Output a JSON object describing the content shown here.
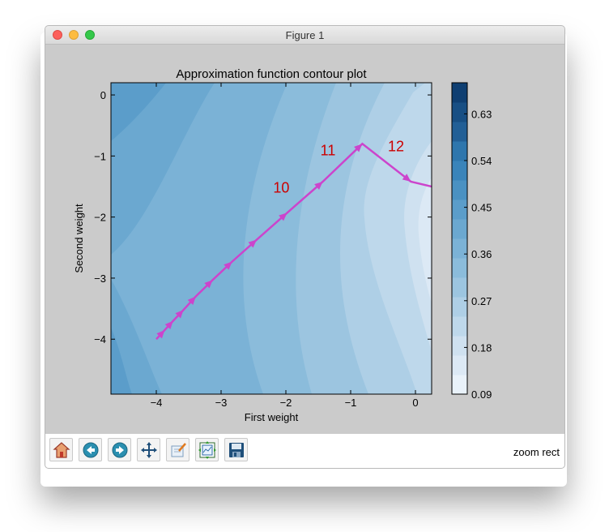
{
  "window": {
    "title": "Figure 1"
  },
  "toolbar": {
    "buttons": [
      {
        "name": "home-button",
        "icon": "home-icon"
      },
      {
        "name": "back-button",
        "icon": "back-arrow-icon"
      },
      {
        "name": "forward-button",
        "icon": "forward-arrow-icon"
      },
      {
        "name": "pan-button",
        "icon": "move-icon"
      },
      {
        "name": "zoom-button",
        "icon": "zoom-rect-icon"
      },
      {
        "name": "subplots-button",
        "icon": "subplots-icon"
      },
      {
        "name": "save-button",
        "icon": "floppy-disk-icon"
      }
    ],
    "status": "zoom rect"
  },
  "chart_data": {
    "type": "contour",
    "title": "Approximation function contour plot",
    "xlabel": "First weight",
    "ylabel": "Second weight",
    "xlim": [
      -4.7,
      0.25
    ],
    "ylim": [
      -4.9,
      0.2
    ],
    "xticks": [
      -4,
      -3,
      -2,
      -1,
      0
    ],
    "yticks": [
      0,
      -1,
      -2,
      -3,
      -4
    ],
    "xtick_labels": [
      "−4",
      "−3",
      "−2",
      "−1",
      "0"
    ],
    "ytick_labels": [
      "0",
      "−1",
      "−2",
      "−3",
      "−4"
    ],
    "colorbar": {
      "range": [
        0.09,
        0.69
      ],
      "ticks": [
        0.09,
        0.18,
        0.27,
        0.36,
        0.45,
        0.54,
        0.63
      ],
      "tick_labels": [
        "0.09",
        "0.18",
        "0.27",
        "0.36",
        "0.45",
        "0.54",
        "0.63"
      ],
      "colormap": "Blues"
    },
    "path": {
      "color": "#cc44cc",
      "points": [
        [
          -4.0,
          -4.0
        ],
        [
          -3.87,
          -3.85
        ],
        [
          -3.74,
          -3.7
        ],
        [
          -3.58,
          -3.52
        ],
        [
          -3.39,
          -3.3
        ],
        [
          -3.13,
          -3.03
        ],
        [
          -2.83,
          -2.73
        ],
        [
          -2.45,
          -2.37
        ],
        [
          -1.98,
          -1.93
        ],
        [
          -1.43,
          -1.42
        ],
        [
          -0.82,
          -0.8
        ],
        [
          -0.07,
          -1.42
        ],
        [
          0.25,
          -1.5
        ]
      ]
    },
    "annotations": [
      {
        "text": "10",
        "x": -2.07,
        "y": -1.6,
        "color": "#cc0000"
      },
      {
        "text": "11",
        "x": -1.35,
        "y": -0.99,
        "color": "#cc0000"
      },
      {
        "text": "12",
        "x": -0.3,
        "y": -0.92,
        "color": "#cc0000"
      }
    ]
  }
}
